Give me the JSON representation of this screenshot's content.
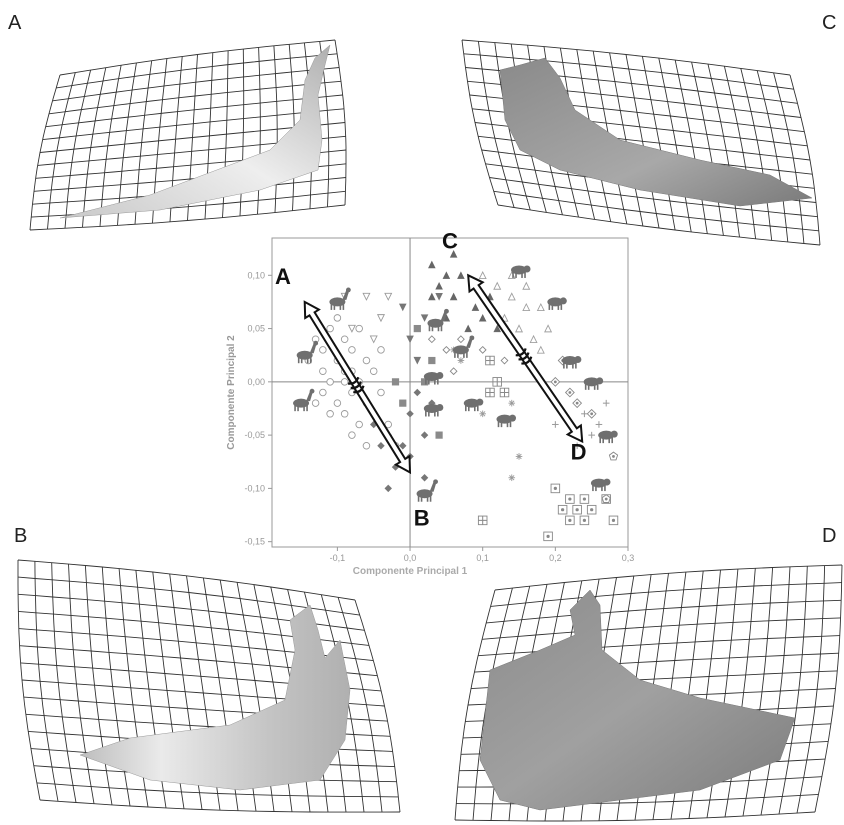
{
  "corner_labels": {
    "a": "A",
    "b": "B",
    "c": "C",
    "d": "D"
  },
  "chart_data": {
    "type": "scatter",
    "xlabel": "Componente Principal 1",
    "ylabel": "Componente Principal 2",
    "xlim": [
      -0.19,
      0.3
    ],
    "ylim": [
      -0.155,
      0.135
    ],
    "xticks": [
      -0.1,
      0.0,
      0.1,
      0.2,
      0.3
    ],
    "xtick_labels": [
      "-0,1",
      "0,0",
      "0,1",
      "0,2",
      "0,3"
    ],
    "yticks": [
      -0.15,
      -0.1,
      -0.05,
      0.0,
      0.05,
      0.1
    ],
    "ytick_labels": [
      "-0,15",
      "-0,10",
      "-0,05",
      "0,00",
      "0,05",
      "0,10"
    ],
    "grid": false,
    "reference_lines": {
      "x": 0.0,
      "y": 0.0
    },
    "annotations": [
      {
        "text": "A",
        "x": -0.175,
        "y": 0.092
      },
      {
        "text": "B",
        "x": 0.016,
        "y": -0.135
      },
      {
        "text": "C",
        "x": 0.055,
        "y": 0.125
      },
      {
        "text": "D",
        "x": 0.232,
        "y": -0.073
      }
    ],
    "arrows": [
      {
        "from": [
          -0.145,
          0.075
        ],
        "to": [
          0.0,
          -0.085
        ]
      },
      {
        "from": [
          0.08,
          0.1
        ],
        "to": [
          0.237,
          -0.056
        ]
      }
    ],
    "series": [
      {
        "marker": "circle-open",
        "color": "#9a9a9a",
        "points": [
          [
            -0.12,
            0.03
          ],
          [
            -0.1,
            0.02
          ],
          [
            -0.09,
            0.01
          ],
          [
            -0.11,
            0.0
          ],
          [
            -0.08,
            -0.01
          ],
          [
            -0.07,
            0.0
          ],
          [
            -0.1,
            -0.02
          ],
          [
            -0.06,
            -0.02
          ],
          [
            -0.13,
            0.04
          ],
          [
            -0.09,
            0.04
          ],
          [
            -0.05,
            -0.03
          ],
          [
            -0.08,
            0.03
          ],
          [
            -0.12,
            -0.01
          ],
          [
            -0.07,
            -0.04
          ],
          [
            -0.11,
            0.05
          ],
          [
            -0.04,
            -0.01
          ],
          [
            -0.09,
            -0.03
          ],
          [
            -0.06,
            0.02
          ],
          [
            -0.14,
            0.02
          ],
          [
            -0.1,
            0.06
          ],
          [
            -0.05,
            0.01
          ],
          [
            -0.03,
            -0.04
          ],
          [
            -0.08,
            -0.05
          ],
          [
            -0.11,
            -0.03
          ],
          [
            -0.07,
            0.05
          ],
          [
            -0.12,
            0.01
          ],
          [
            -0.04,
            0.03
          ],
          [
            -0.02,
            -0.06
          ],
          [
            -0.06,
            -0.06
          ],
          [
            -0.13,
            -0.02
          ],
          [
            -0.09,
            0.0
          ],
          [
            -0.08,
            0.01
          ]
        ]
      },
      {
        "marker": "triangle-down-open",
        "color": "#9a9a9a",
        "points": [
          [
            -0.09,
            0.08
          ],
          [
            -0.06,
            0.08
          ],
          [
            -0.04,
            0.06
          ],
          [
            -0.03,
            0.08
          ],
          [
            -0.08,
            0.05
          ],
          [
            -0.05,
            0.04
          ]
        ]
      },
      {
        "marker": "diamond-filled",
        "color": "#777777",
        "points": [
          [
            -0.05,
            -0.04
          ],
          [
            -0.03,
            -0.05
          ],
          [
            -0.02,
            -0.08
          ],
          [
            -0.01,
            -0.06
          ],
          [
            0.0,
            -0.07
          ],
          [
            -0.03,
            -0.1
          ],
          [
            0.02,
            -0.09
          ],
          [
            -0.04,
            -0.06
          ],
          [
            0.0,
            -0.03
          ],
          [
            0.02,
            -0.05
          ],
          [
            0.03,
            -0.02
          ],
          [
            0.01,
            -0.01
          ]
        ]
      },
      {
        "marker": "square-filled",
        "color": "#8a8a8a",
        "points": [
          [
            -0.02,
            0.0
          ],
          [
            0.01,
            0.05
          ],
          [
            0.02,
            0.0
          ],
          [
            -0.01,
            -0.02
          ],
          [
            0.03,
            0.02
          ],
          [
            0.04,
            -0.05
          ]
        ]
      },
      {
        "marker": "triangle-down-filled",
        "color": "#777777",
        "points": [
          [
            -0.01,
            0.07
          ],
          [
            0.02,
            0.06
          ],
          [
            0.0,
            0.04
          ],
          [
            0.04,
            0.08
          ],
          [
            0.01,
            0.02
          ]
        ]
      },
      {
        "marker": "triangle-up-filled",
        "color": "#666666",
        "points": [
          [
            0.03,
            0.11
          ],
          [
            0.05,
            0.1
          ],
          [
            0.06,
            0.08
          ],
          [
            0.04,
            0.09
          ],
          [
            0.07,
            0.1
          ],
          [
            0.09,
            0.07
          ],
          [
            0.08,
            0.05
          ],
          [
            0.1,
            0.06
          ],
          [
            0.11,
            0.08
          ],
          [
            0.06,
            0.12
          ],
          [
            0.12,
            0.05
          ],
          [
            0.05,
            0.06
          ],
          [
            0.09,
            0.09
          ],
          [
            0.03,
            0.08
          ]
        ]
      },
      {
        "marker": "diamond-open-small",
        "color": "#888888",
        "points": [
          [
            0.03,
            0.04
          ],
          [
            0.05,
            0.03
          ],
          [
            0.07,
            0.04
          ],
          [
            0.06,
            0.01
          ],
          [
            0.1,
            0.03
          ],
          [
            0.13,
            0.02
          ]
        ]
      },
      {
        "marker": "triangle-up-open",
        "color": "#a0a0a0",
        "points": [
          [
            0.1,
            0.1
          ],
          [
            0.12,
            0.09
          ],
          [
            0.14,
            0.08
          ],
          [
            0.16,
            0.07
          ],
          [
            0.15,
            0.05
          ],
          [
            0.13,
            0.06
          ],
          [
            0.17,
            0.04
          ],
          [
            0.18,
            0.03
          ],
          [
            0.14,
            0.1
          ],
          [
            0.16,
            0.09
          ],
          [
            0.19,
            0.05
          ],
          [
            0.18,
            0.07
          ]
        ]
      },
      {
        "marker": "square-cross",
        "color": "#888888",
        "points": [
          [
            0.11,
            0.02
          ],
          [
            0.12,
            0.0
          ],
          [
            0.11,
            -0.01
          ],
          [
            0.1,
            -0.13
          ],
          [
            0.13,
            -0.01
          ]
        ]
      },
      {
        "marker": "square-dot",
        "color": "#888888",
        "points": [
          [
            0.2,
            -0.1
          ],
          [
            0.22,
            -0.11
          ],
          [
            0.23,
            -0.12
          ],
          [
            0.24,
            -0.11
          ],
          [
            0.25,
            -0.12
          ],
          [
            0.27,
            -0.11
          ],
          [
            0.28,
            -0.13
          ],
          [
            0.22,
            -0.13
          ],
          [
            0.19,
            -0.145
          ],
          [
            0.21,
            -0.12
          ],
          [
            0.24,
            -0.13
          ]
        ]
      },
      {
        "marker": "diamond-dot",
        "color": "#888888",
        "points": [
          [
            0.2,
            0.0
          ],
          [
            0.22,
            -0.01
          ],
          [
            0.23,
            -0.02
          ],
          [
            0.21,
            0.02
          ],
          [
            0.25,
            -0.03
          ]
        ]
      },
      {
        "marker": "plus",
        "color": "#999999",
        "points": [
          [
            0.2,
            -0.04
          ],
          [
            0.24,
            -0.03
          ],
          [
            0.26,
            -0.04
          ],
          [
            0.23,
            -0.06
          ],
          [
            0.27,
            -0.02
          ],
          [
            0.25,
            -0.05
          ]
        ]
      },
      {
        "marker": "asterisk",
        "color": "#999999",
        "points": [
          [
            0.06,
            0.03
          ],
          [
            0.1,
            -0.03
          ],
          [
            0.14,
            -0.02
          ],
          [
            0.15,
            -0.07
          ],
          [
            0.14,
            -0.09
          ],
          [
            0.07,
            0.02
          ]
        ]
      },
      {
        "marker": "pentagon-dot",
        "color": "#888888",
        "points": [
          [
            0.28,
            -0.07
          ],
          [
            0.27,
            -0.11
          ]
        ]
      }
    ],
    "silhouettes": [
      {
        "name": "giraffe-icon",
        "x": -0.1,
        "y": 0.075
      },
      {
        "name": "moose-icon",
        "x": -0.145,
        "y": 0.025
      },
      {
        "name": "deer-icon",
        "x": -0.15,
        "y": -0.02
      },
      {
        "name": "llama-icon",
        "x": 0.02,
        "y": -0.105
      },
      {
        "name": "camel-icon",
        "x": 0.035,
        "y": 0.055
      },
      {
        "name": "horse-icon",
        "x": 0.07,
        "y": 0.03
      },
      {
        "name": "goat-icon",
        "x": 0.03,
        "y": 0.005
      },
      {
        "name": "dog-icon",
        "x": 0.03,
        "y": -0.025
      },
      {
        "name": "rhino-icon",
        "x": 0.085,
        "y": -0.02
      },
      {
        "name": "bison-icon",
        "x": 0.13,
        "y": -0.035
      },
      {
        "name": "pig-icon",
        "x": 0.15,
        "y": 0.105
      },
      {
        "name": "tapir-icon",
        "x": 0.2,
        "y": 0.075
      },
      {
        "name": "boar-icon",
        "x": 0.22,
        "y": 0.02
      },
      {
        "name": "hippo-icon",
        "x": 0.25,
        "y": 0.0
      },
      {
        "name": "beaver-icon",
        "x": 0.27,
        "y": -0.05
      },
      {
        "name": "otter-icon",
        "x": 0.26,
        "y": -0.095
      }
    ]
  }
}
